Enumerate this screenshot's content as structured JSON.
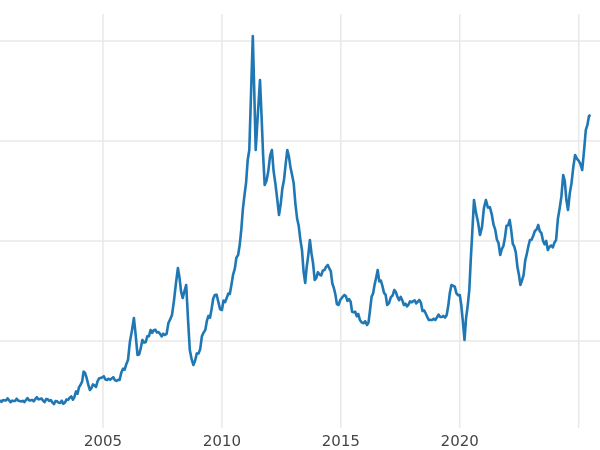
{
  "chart_data": {
    "type": "line",
    "title": "",
    "xlabel": "",
    "ylabel": "",
    "xlim": [
      2000.67,
      2025.56
    ],
    "ylim": [
      1.3,
      42.7
    ],
    "x_ticks": [
      2005,
      2010,
      2015,
      2020,
      2025
    ],
    "x_tick_labels": [
      "2005",
      "2010",
      "2015",
      "2020",
      ""
    ],
    "y_gridlines": [
      10,
      20,
      30,
      40
    ],
    "y_tick_labels_shown": false,
    "grid": true,
    "legend": "none",
    "color": "#1f77b4",
    "series": [
      {
        "x": [
          2000.67,
          2001.5,
          2002.35,
          2003.2,
          2003.8,
          2004.25,
          2004.45,
          2004.9,
          2005.7,
          2006.05,
          2006.3,
          2006.45,
          2007.0,
          2007.6,
          2007.9,
          2008.15,
          2008.35,
          2008.5,
          2008.65,
          2008.8,
          2009.3,
          2009.7,
          2010.0,
          2010.4,
          2010.75,
          2010.95,
          2011.15,
          2011.3,
          2011.42,
          2011.6,
          2011.8,
          2012.1,
          2012.4,
          2012.75,
          2012.95,
          2013.3,
          2013.5,
          2013.7,
          2013.9,
          2014.45,
          2014.9,
          2015.15,
          2015.8,
          2016.1,
          2016.55,
          2016.95,
          2017.25,
          2017.65,
          2018.3,
          2018.7,
          2019.45,
          2019.65,
          2020.0,
          2020.2,
          2020.4,
          2020.6,
          2020.85,
          2021.1,
          2021.35,
          2021.7,
          2022.1,
          2022.55,
          2022.95,
          2023.3,
          2023.7,
          2024.05,
          2024.35,
          2024.55,
          2024.85,
          2025.15,
          2025.3,
          2025.5
        ],
        "y": [
          4.1,
          4.0,
          4.2,
          3.8,
          4.4,
          6.8,
          5.1,
          6.3,
          6.1,
          8.1,
          12.3,
          8.6,
          11.1,
          10.6,
          12.6,
          17.3,
          14.3,
          15.6,
          9.1,
          7.6,
          11.1,
          14.6,
          13.1,
          15.6,
          19.6,
          24.6,
          29.1,
          40.5,
          29.1,
          36.1,
          25.6,
          29.1,
          22.6,
          29.1,
          26.6,
          20.1,
          15.8,
          20.1,
          16.1,
          17.6,
          13.6,
          14.6,
          12.1,
          11.6,
          17.1,
          13.6,
          15.1,
          13.6,
          14.1,
          12.1,
          12.6,
          15.6,
          14.6,
          10.1,
          15.1,
          24.1,
          20.6,
          24.1,
          22.6,
          18.6,
          22.1,
          15.6,
          20.1,
          21.6,
          19.1,
          20.1,
          26.6,
          23.1,
          28.6,
          27.1,
          31.1,
          32.6
        ]
      }
    ]
  }
}
